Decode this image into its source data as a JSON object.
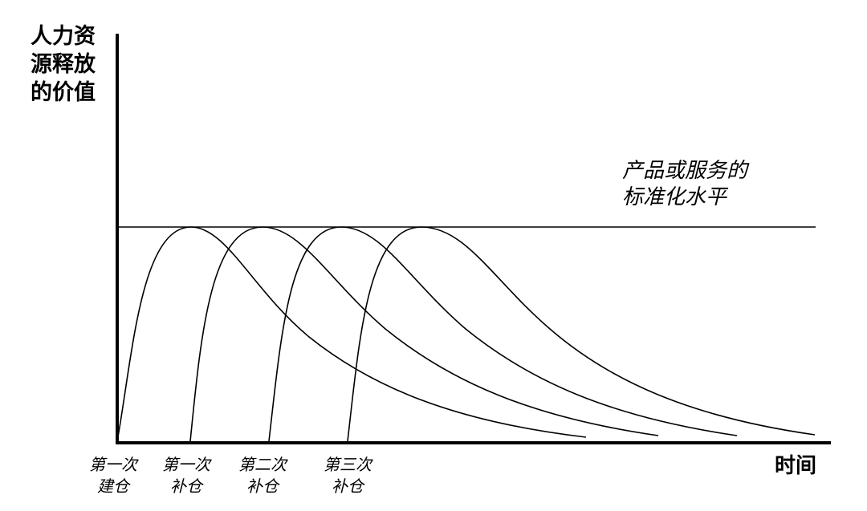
{
  "y_axis": {
    "title_lines": [
      "人力资",
      "源释放",
      "的价值"
    ]
  },
  "x_axis": {
    "title": "时间",
    "ticks": [
      {
        "line1": "第一次",
        "line2": "建仓"
      },
      {
        "line1": "第一次",
        "line2": "补仓"
      },
      {
        "line1": "第二次",
        "line2": "补仓"
      },
      {
        "line1": "第三次",
        "line2": "补仓"
      }
    ]
  },
  "standard_level": {
    "label_lines": [
      "产品或服务的",
      "标准化水平"
    ]
  },
  "colors": {
    "ink": "#000000",
    "background": "#ffffff"
  }
}
